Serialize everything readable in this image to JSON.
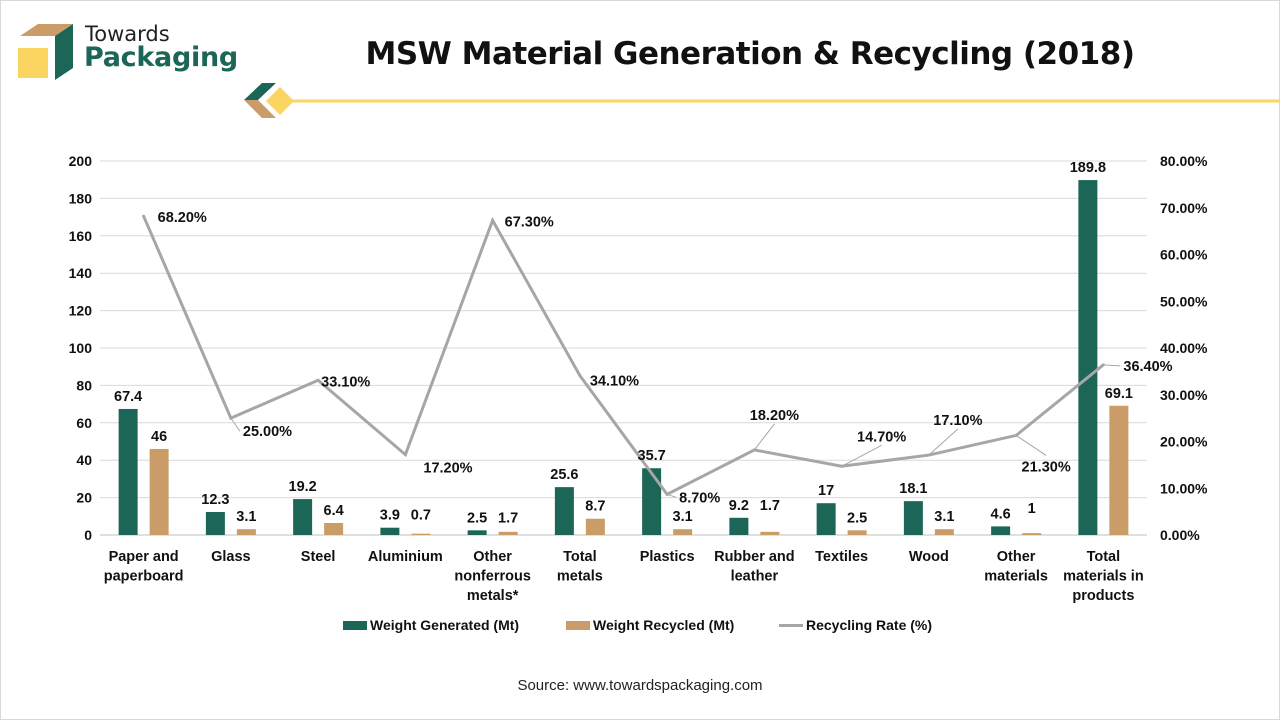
{
  "brand": {
    "line1": "Towards",
    "line2": "Packaging",
    "colors": {
      "green": "#1b6656",
      "tan": "#c99c68",
      "yellow": "#fcd462"
    }
  },
  "source": "Source: www.towardspackaging.com",
  "chart_data": {
    "type": "bar",
    "title": "MSW Material Generation & Recycling (2018)",
    "categories": [
      [
        "Paper and",
        "paperboard"
      ],
      [
        "Glass"
      ],
      [
        "Steel"
      ],
      [
        "Aluminium"
      ],
      [
        "Other",
        "nonferrous",
        "metals*"
      ],
      [
        "Total",
        "metals"
      ],
      [
        "Plastics"
      ],
      [
        "Rubber and",
        "leather"
      ],
      [
        "Textiles"
      ],
      [
        "Wood"
      ],
      [
        "Other",
        "materials"
      ],
      [
        "Total",
        "materials in",
        "products"
      ]
    ],
    "series": [
      {
        "name": "Weight Generated (Mt)",
        "type": "bar",
        "axis": "left",
        "color": "#1b6656",
        "values": [
          67.4,
          12.3,
          19.2,
          3.9,
          2.5,
          25.6,
          35.7,
          9.2,
          17,
          18.1,
          4.6,
          189.8
        ],
        "labels": [
          "67.4",
          "12.3",
          "19.2",
          "3.9",
          "2.5",
          "25.6",
          "35.7",
          "9.2",
          "17",
          "18.1",
          "4.6",
          "189.8"
        ]
      },
      {
        "name": "Weight Recycled (Mt)",
        "type": "bar",
        "axis": "left",
        "color": "#c99c68",
        "values": [
          46,
          3.1,
          6.4,
          0.7,
          1.7,
          8.7,
          3.1,
          1.7,
          2.5,
          3.1,
          1,
          69.1
        ],
        "labels": [
          "46",
          "3.1",
          "6.4",
          "0.7",
          "1.7",
          "8.7",
          "3.1",
          "1.7",
          "2.5",
          "3.1",
          "1",
          "69.1"
        ]
      },
      {
        "name": "Recycling Rate (%)",
        "type": "line",
        "axis": "right",
        "color": "#a6a6a6",
        "values": [
          68.2,
          25.0,
          33.1,
          17.2,
          67.3,
          34.1,
          8.7,
          18.2,
          14.7,
          17.1,
          21.3,
          36.4
        ],
        "labels": [
          "68.20%",
          "25.00%",
          "33.10%",
          "17.20%",
          "67.30%",
          "34.10%",
          "8.70%",
          "18.20%",
          "14.70%",
          "17.10%",
          "21.30%",
          "36.40%"
        ]
      }
    ],
    "y_left": {
      "ylim": [
        0,
        200
      ],
      "ticks": [
        "0",
        "20",
        "40",
        "60",
        "80",
        "100",
        "120",
        "140",
        "160",
        "180",
        "200"
      ]
    },
    "y_right": {
      "ylim": [
        0,
        80
      ],
      "ticks": [
        "0.00%",
        "10.00%",
        "20.00%",
        "30.00%",
        "40.00%",
        "50.00%",
        "60.00%",
        "70.00%",
        "80.00%"
      ]
    },
    "xlabel": "",
    "ylabel": "",
    "grid": true,
    "legend": "bottom"
  }
}
